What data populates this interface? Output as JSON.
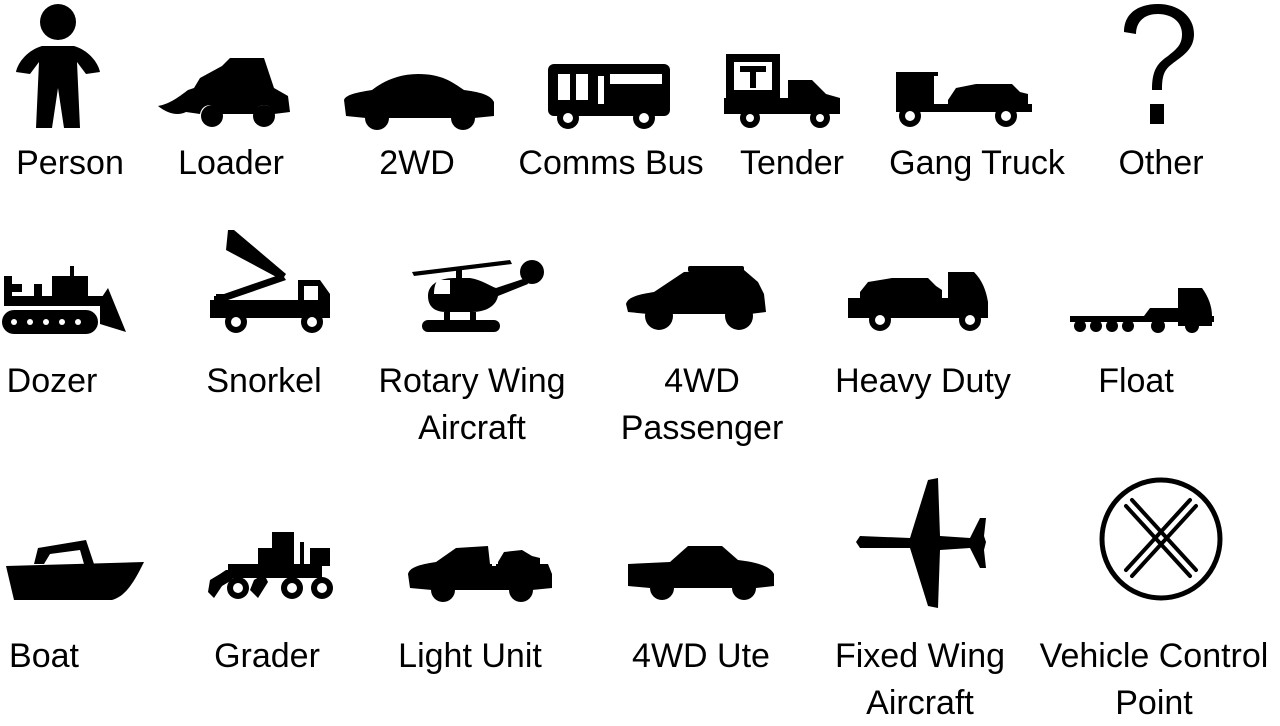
{
  "legend": {
    "items": [
      {
        "icon": "person-icon",
        "label": "Person"
      },
      {
        "icon": "loader-icon",
        "label": "Loader"
      },
      {
        "icon": "2wd-car-icon",
        "label": "2WD"
      },
      {
        "icon": "comms-bus-icon",
        "label": "Comms Bus"
      },
      {
        "icon": "tender-truck-icon",
        "label": "Tender"
      },
      {
        "icon": "gang-truck-icon",
        "label": "Gang Truck"
      },
      {
        "icon": "question-mark-icon",
        "label": "Other"
      },
      {
        "icon": "dozer-icon",
        "label": "Dozer"
      },
      {
        "icon": "snorkel-truck-icon",
        "label": "Snorkel"
      },
      {
        "icon": "helicopter-icon",
        "label_line1": "Rotary Wing",
        "label_line2": "Aircraft"
      },
      {
        "icon": "4wd-suv-icon",
        "label_line1": "4WD",
        "label_line2": "Passenger"
      },
      {
        "icon": "heavy-duty-truck-icon",
        "label": "Heavy Duty"
      },
      {
        "icon": "float-trailer-icon",
        "label": "Float"
      },
      {
        "icon": "boat-icon",
        "label": "Boat"
      },
      {
        "icon": "grader-icon",
        "label": "Grader"
      },
      {
        "icon": "light-unit-icon",
        "label": "Light Unit"
      },
      {
        "icon": "4wd-ute-icon",
        "label": "4WD Ute"
      },
      {
        "icon": "airplane-icon",
        "label_line1": "Fixed Wing",
        "label_line2": "Aircraft"
      },
      {
        "icon": "vehicle-control-point-icon",
        "label_line1": "Vehicle Control",
        "label_line2": "Point"
      }
    ]
  }
}
